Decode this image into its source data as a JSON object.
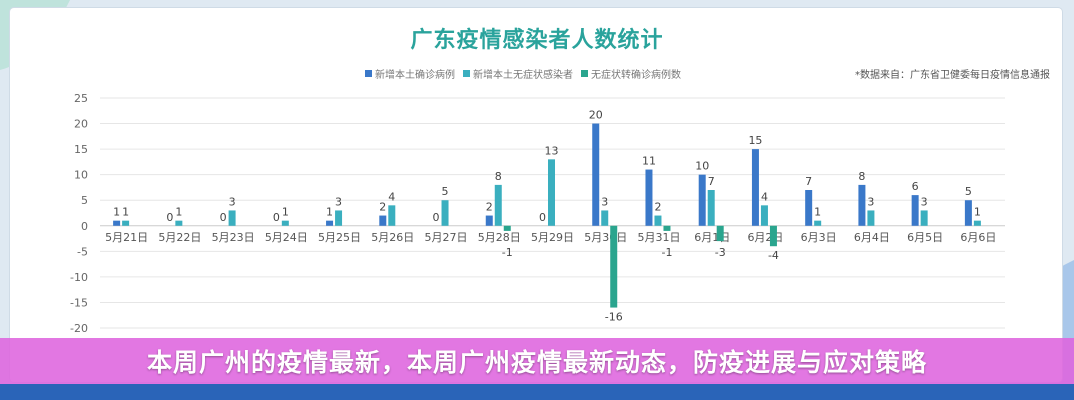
{
  "banner": {
    "text": "本周广州的疫情最新，本周广州疫情最新动态，防疫进展与应对策略"
  },
  "source_note": "*数据来自：广东省卫健委每日疫情信息通报",
  "colors": {
    "confirmed": "#3a78c9",
    "asymptomatic": "#3aafbf",
    "converted": "#2aa58e",
    "title": "#2aa39c",
    "banner": "#de64de"
  },
  "chart_data": {
    "type": "bar",
    "title": "广东疫情感染者人数统计",
    "xlabel": "",
    "ylabel": "",
    "ylim": [
      -20,
      25
    ],
    "yticks": [
      25,
      20,
      15,
      10,
      5,
      0,
      -5,
      -10,
      -15,
      -20
    ],
    "grid": true,
    "legend_placement": "top",
    "categories": [
      "5月21日",
      "5月22日",
      "5月23日",
      "5月24日",
      "5月25日",
      "5月26日",
      "5月27日",
      "5月28日",
      "5月29日",
      "5月30日",
      "5月31日",
      "6月1日",
      "6月2日",
      "6月3日",
      "6月4日",
      "6月5日",
      "6月6日"
    ],
    "series": [
      {
        "name": "新增本土确诊病例",
        "values": [
          1,
          0,
          0,
          0,
          1,
          2,
          0,
          2,
          0,
          20,
          11,
          10,
          15,
          7,
          8,
          6,
          5
        ]
      },
      {
        "name": "新增本土无症状感染者",
        "values": [
          1,
          1,
          3,
          1,
          3,
          4,
          5,
          8,
          13,
          3,
          2,
          7,
          4,
          1,
          3,
          3,
          1
        ]
      },
      {
        "name": "无症状转确诊病例数",
        "values": [
          0,
          0,
          0,
          0,
          0,
          0,
          0,
          -1,
          0,
          -16,
          -1,
          -3,
          -4,
          0,
          0,
          0,
          0
        ]
      }
    ]
  }
}
